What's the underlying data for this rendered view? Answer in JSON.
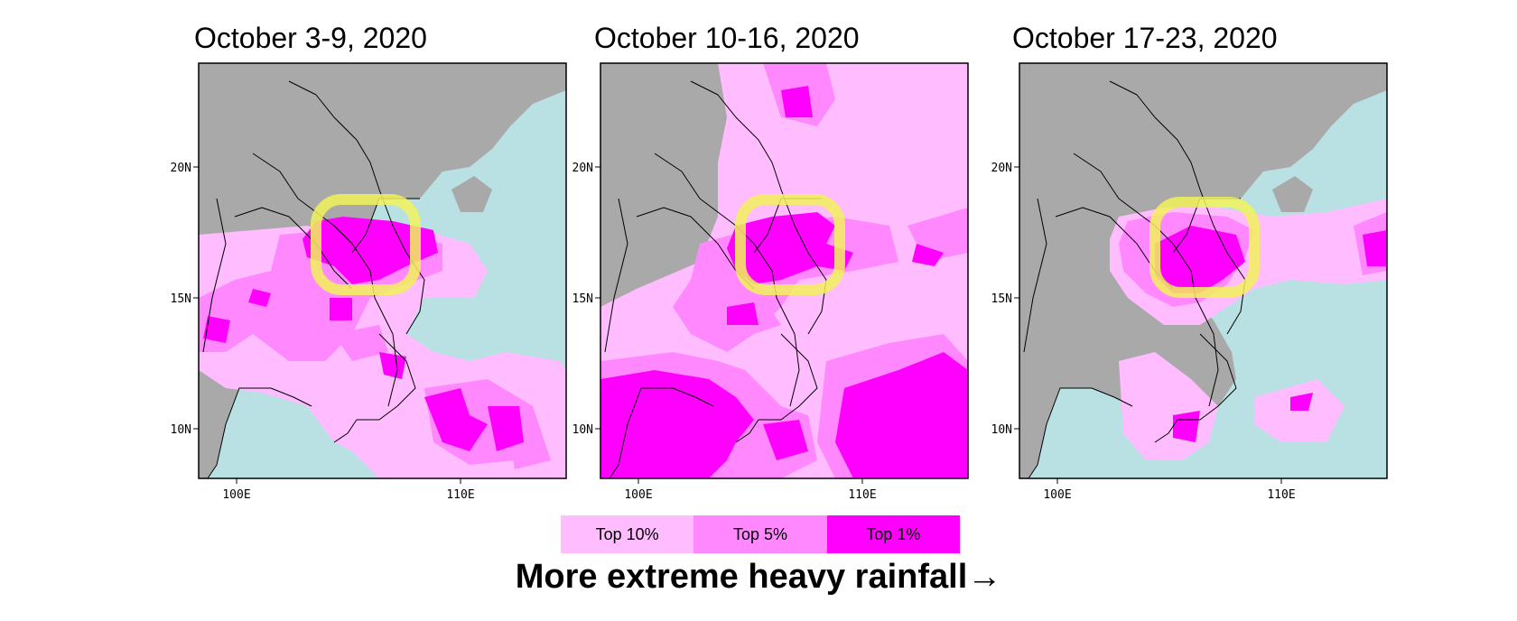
{
  "panels": [
    {
      "title": "October 3-9, 2020"
    },
    {
      "title": "October 10-16, 2020"
    },
    {
      "title": "October 17-23, 2020"
    }
  ],
  "axes": {
    "x_ticks": [
      "100E",
      "110E"
    ],
    "y_ticks": [
      "20N",
      "15N",
      "10N"
    ]
  },
  "legend": {
    "items": [
      {
        "label": "Top 10%",
        "color": "#ffbcff"
      },
      {
        "label": "Top 5%",
        "color": "#ff88ff"
      },
      {
        "label": "Top 1%",
        "color": "#ff00ff"
      }
    ]
  },
  "colors": {
    "land": "#a9a9a9",
    "sea": "#b9e0e2",
    "highlight": "#f2f25a"
  },
  "caption": "More extreme heavy rainfall→"
}
